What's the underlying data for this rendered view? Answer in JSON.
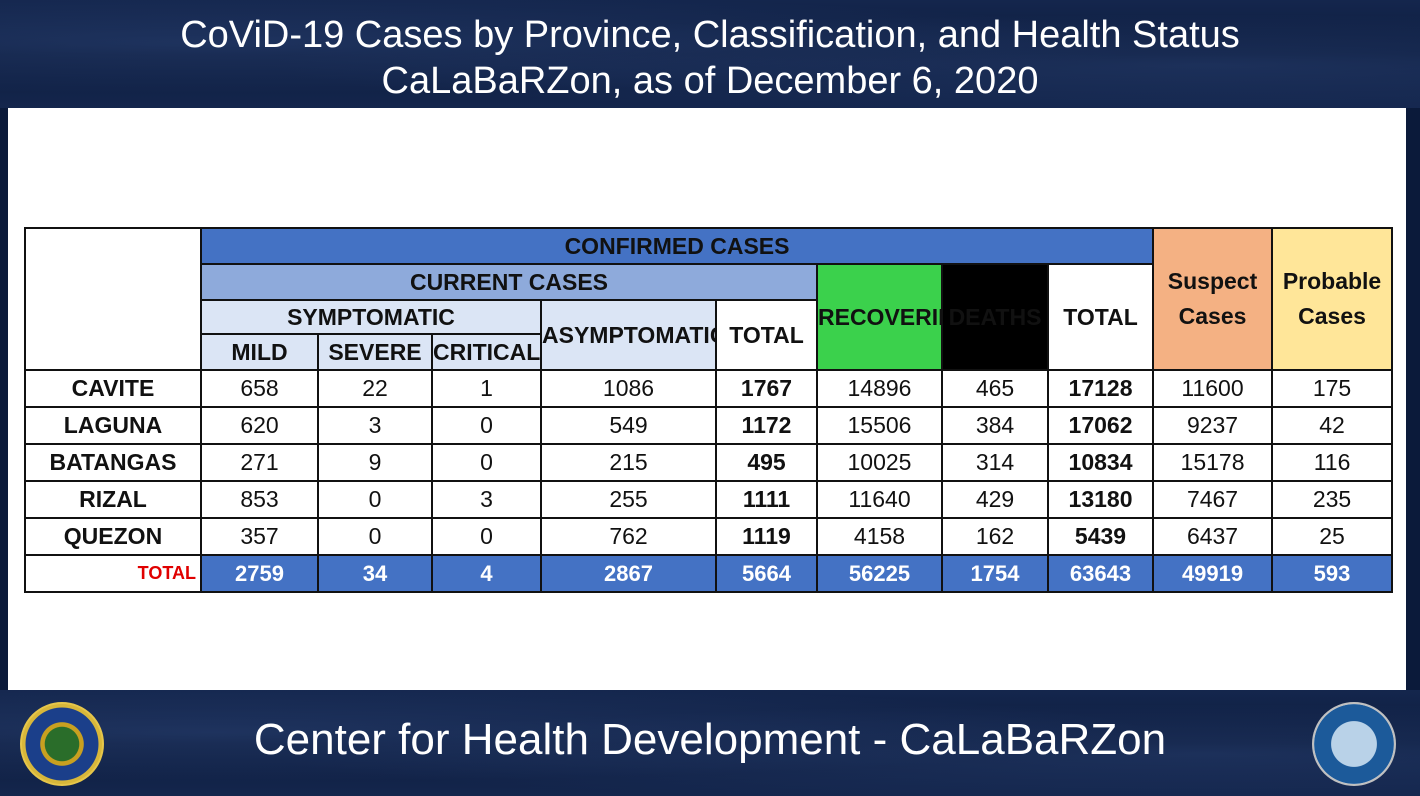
{
  "header": {
    "title_line1": "CoViD-19 Cases by Province, Classification, and Health Status",
    "title_line2": "CaLaBaRZon, as of December 6, 2020"
  },
  "table": {
    "headers": {
      "confirmed": "CONFIRMED CASES",
      "current": "CURRENT CASES",
      "symptomatic": "SYMPTOMATIC",
      "mild": "MILD",
      "severe": "SEVERE",
      "critical": "CRITICAL",
      "asymptomatic": "ASYMPTOMATIC",
      "total_current": "TOTAL",
      "recoveries": "RECOVERIES",
      "deaths": "DEATHS",
      "total_confirmed": "TOTAL",
      "suspect_line1": "Suspect",
      "suspect_line2": "Cases",
      "probable_line1": "Probable",
      "probable_line2": "Cases"
    },
    "rows": [
      {
        "province": "CAVITE",
        "mild": "658",
        "severe": "22",
        "critical": "1",
        "asymptomatic": "1086",
        "total_current": "1767",
        "recoveries": "14896",
        "deaths": "465",
        "total": "17128",
        "suspect": "11600",
        "probable": "175"
      },
      {
        "province": "LAGUNA",
        "mild": "620",
        "severe": "3",
        "critical": "0",
        "asymptomatic": "549",
        "total_current": "1172",
        "recoveries": "15506",
        "deaths": "384",
        "total": "17062",
        "suspect": "9237",
        "probable": "42"
      },
      {
        "province": "BATANGAS",
        "mild": "271",
        "severe": "9",
        "critical": "0",
        "asymptomatic": "215",
        "total_current": "495",
        "recoveries": "10025",
        "deaths": "314",
        "total": "10834",
        "suspect": "15178",
        "probable": "116"
      },
      {
        "province": "RIZAL",
        "mild": "853",
        "severe": "0",
        "critical": "3",
        "asymptomatic": "255",
        "total_current": "1111",
        "recoveries": "11640",
        "deaths": "429",
        "total": "13180",
        "suspect": "7467",
        "probable": "235"
      },
      {
        "province": "QUEZON",
        "mild": "357",
        "severe": "0",
        "critical": "0",
        "asymptomatic": "762",
        "total_current": "1119",
        "recoveries": "4158",
        "deaths": "162",
        "total": "5439",
        "suspect": "6437",
        "probable": "25"
      }
    ],
    "totals": {
      "label": "TOTAL",
      "mild": "2759",
      "severe": "34",
      "critical": "4",
      "asymptomatic": "2867",
      "total_current": "5664",
      "recoveries": "56225",
      "deaths": "1754",
      "total": "63643",
      "suspect": "49919",
      "probable": "593"
    }
  },
  "footer": {
    "title": "Center for Health Development - CaLaBaRZon",
    "left_seal_icon": "doh-seal-icon",
    "right_seal_icon": "chd-calabarzon-seal-icon"
  }
}
